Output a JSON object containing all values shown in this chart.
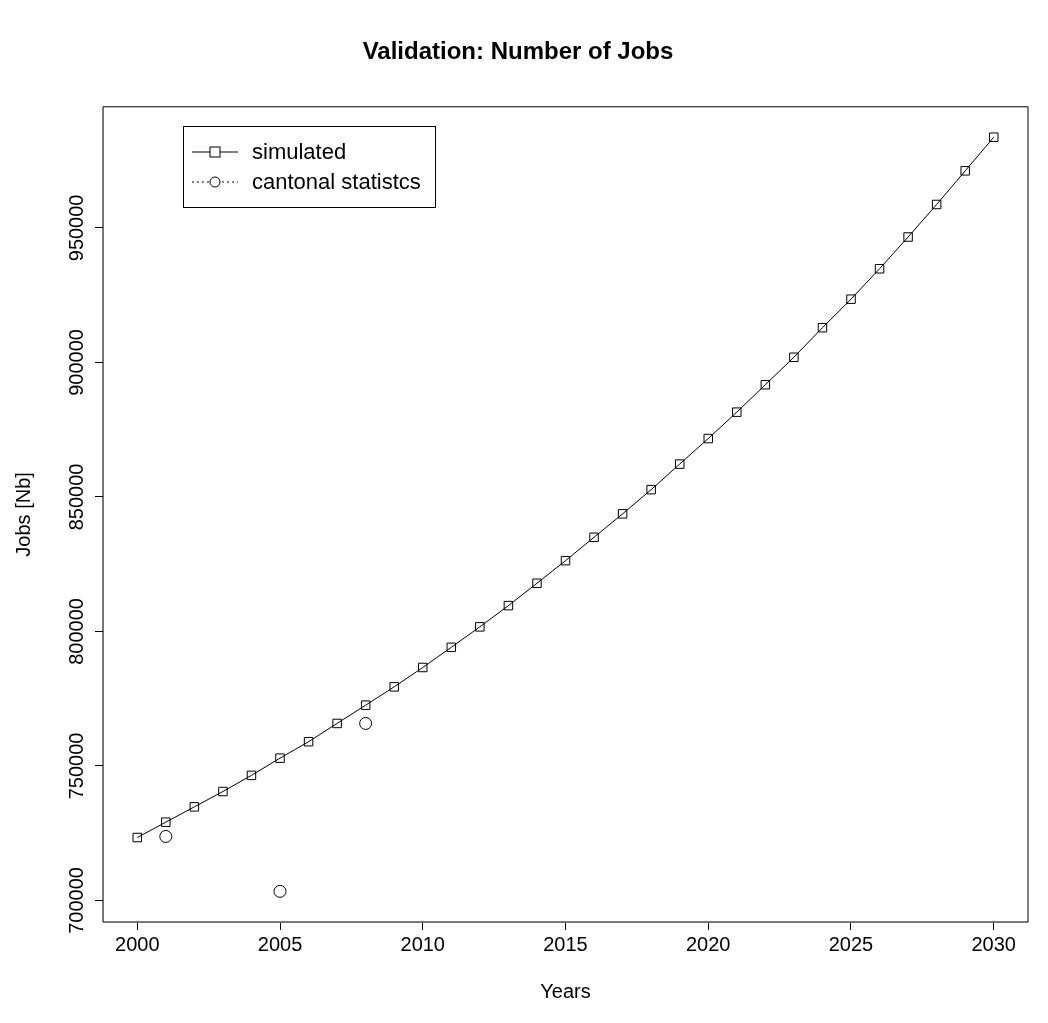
{
  "chart_data": {
    "type": "line",
    "title": "Validation: Number of Jobs",
    "xlabel": "Years",
    "ylabel": "Jobs [Nb]",
    "xlim": [
      1998.8,
      2031.2
    ],
    "xticks": [
      2000,
      2005,
      2010,
      2015,
      2020,
      2025,
      2030
    ],
    "ylim": [
      692000,
      995000
    ],
    "yticks": [
      700000,
      750000,
      800000,
      850000,
      900000,
      950000
    ],
    "grid": false,
    "legend": "top left",
    "series": [
      {
        "name": "simulated",
        "type": "line",
        "color": "#000000",
        "marker": "square",
        "line_style": "solid",
        "x": [
          2000,
          2001,
          2002,
          2003,
          2004,
          2005,
          2006,
          2007,
          2008,
          2009,
          2010,
          2011,
          2012,
          2013,
          2014,
          2015,
          2016,
          2017,
          2018,
          2019,
          2020,
          2021,
          2022,
          2023,
          2024,
          2025,
          2026,
          2027,
          2028,
          2029,
          2030
        ],
        "values": [
          723400,
          729100,
          734800,
          740500,
          746500,
          752900,
          759000,
          765800,
          772600,
          779400,
          786600,
          794100,
          801700,
          809600,
          817900,
          826300,
          835000,
          843700,
          852700,
          862200,
          871700,
          881500,
          891700,
          901900,
          912900,
          923500,
          934800,
          946600,
          958700,
          971200,
          983700
        ]
      },
      {
        "name": "cantonal statistcs",
        "type": "scatter",
        "color": "#000000",
        "marker": "circle",
        "line_style": "dotted",
        "x": [
          2001,
          2005,
          2008
        ],
        "values": [
          723800,
          703400,
          765800
        ]
      }
    ]
  }
}
